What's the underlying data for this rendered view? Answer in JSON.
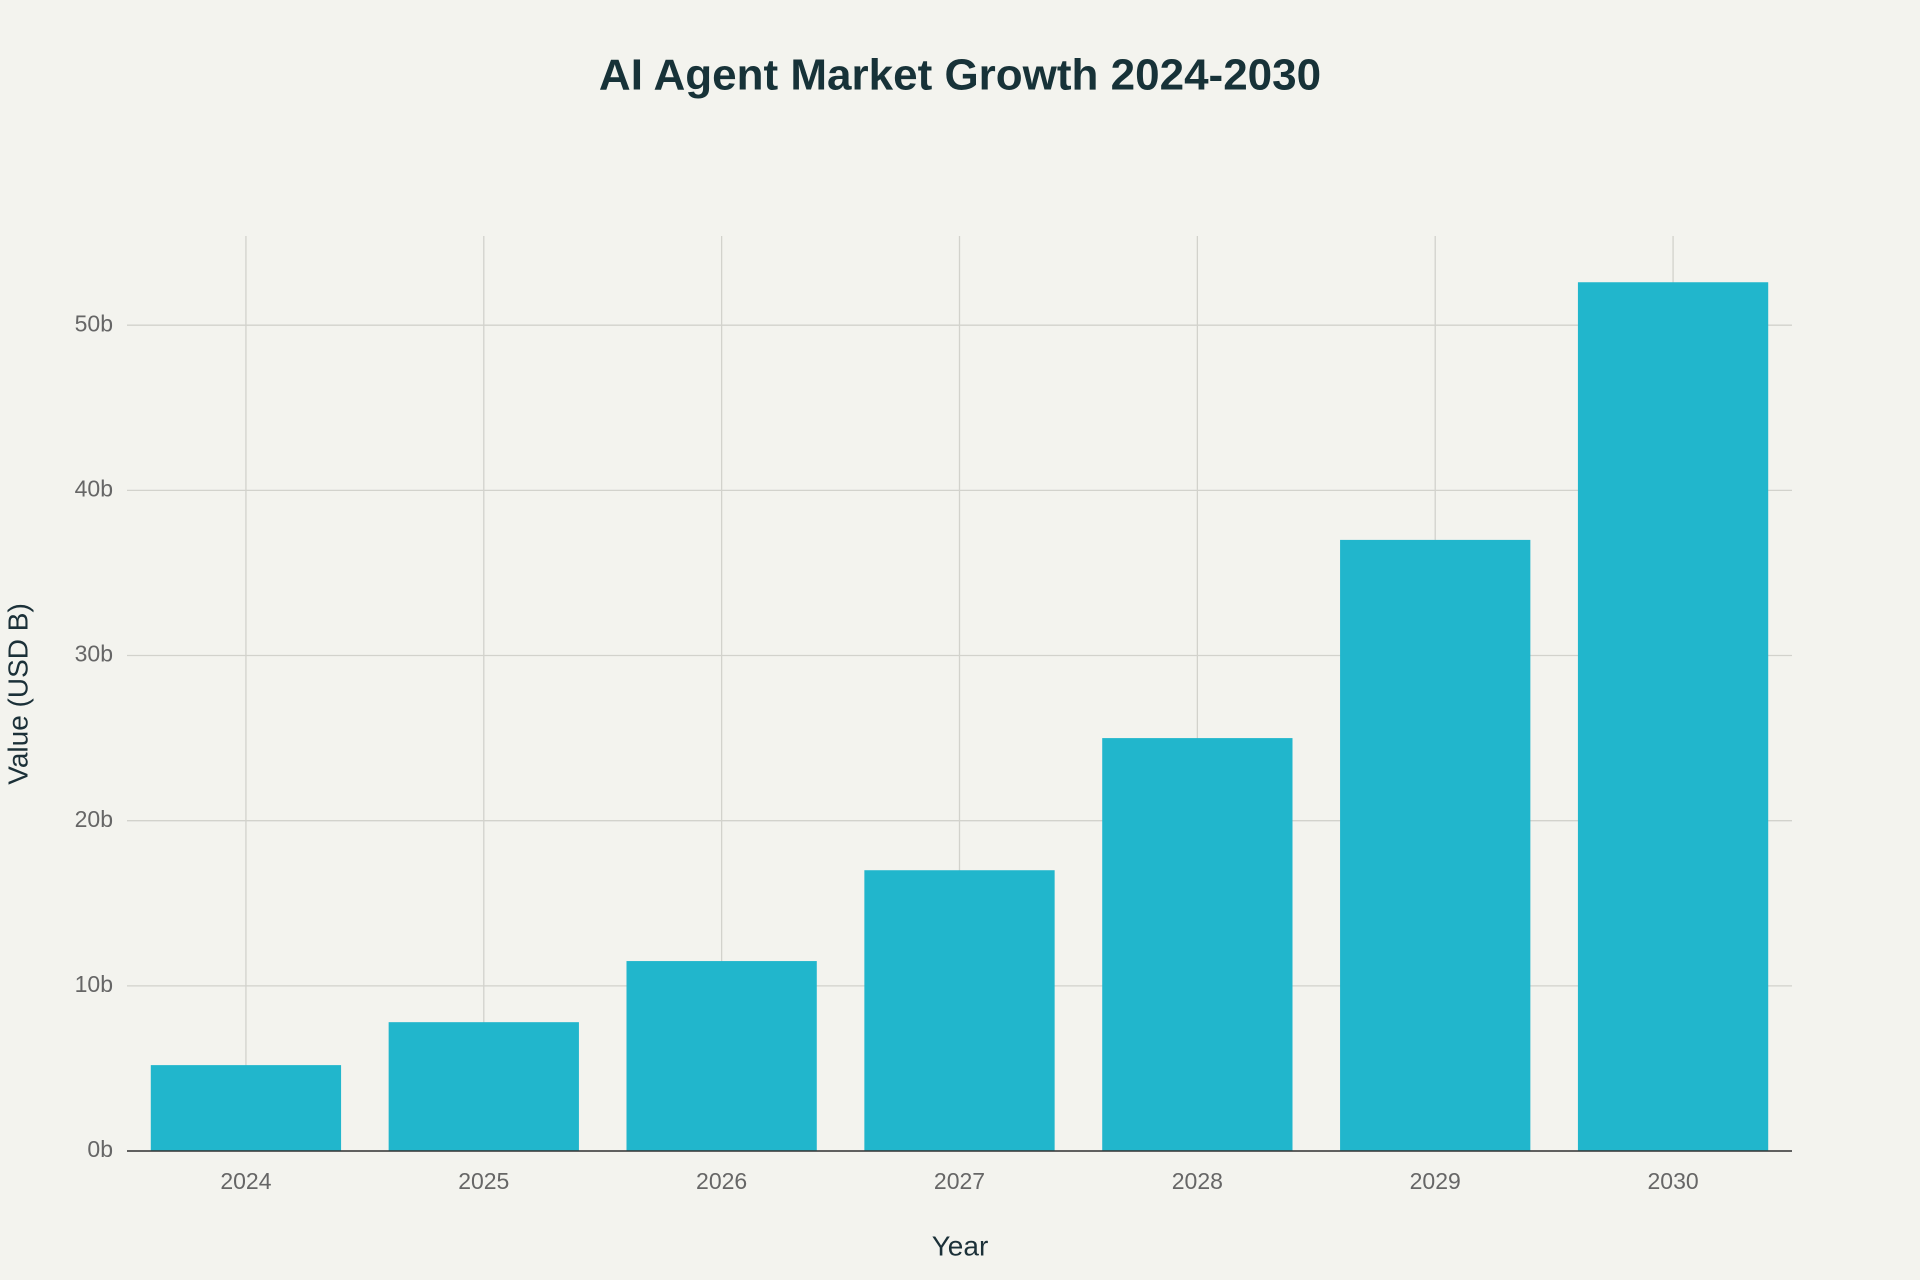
{
  "chart_data": {
    "type": "bar",
    "title": "AI Agent Market Growth 2024-2030",
    "x_label": "Year",
    "y_label": "Value (USD B)",
    "categories": [
      "2024",
      "2025",
      "2026",
      "2027",
      "2028",
      "2029",
      "2030"
    ],
    "values": [
      5.2,
      7.8,
      11.5,
      17,
      25,
      37,
      52.6
    ],
    "color": "#21b6cc",
    "ylim": [
      0,
      55.4
    ],
    "yticks": [
      {
        "value": 0,
        "label": "0b"
      },
      {
        "value": 10,
        "label": "10b"
      },
      {
        "value": 20,
        "label": "20b"
      },
      {
        "value": 30,
        "label": "30b"
      },
      {
        "value": 40,
        "label": "40b"
      },
      {
        "value": 50,
        "label": "50b"
      }
    ],
    "grid": true
  }
}
